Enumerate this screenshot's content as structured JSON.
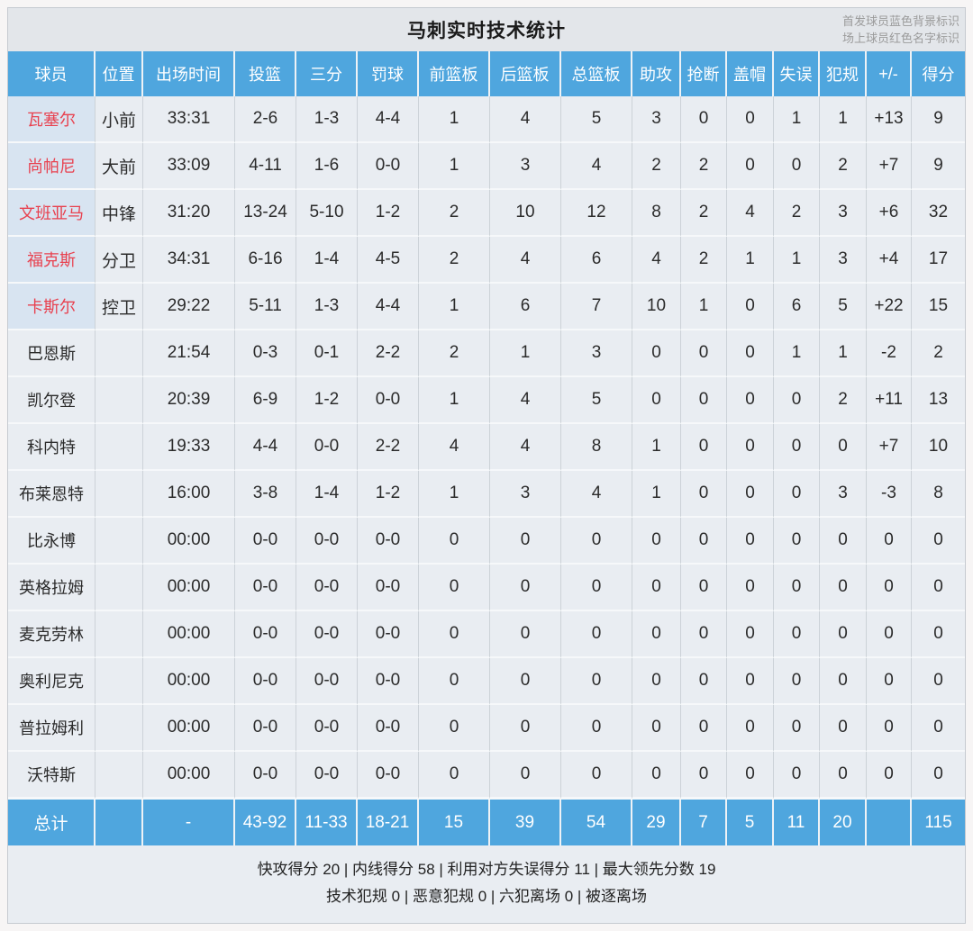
{
  "page": {
    "title": "马刺实时技术统计",
    "legend_line1": "首发球员蓝色背景标识",
    "legend_line2": "场上球员红色名字标识"
  },
  "colors": {
    "header_blue": "#4fa6de",
    "starter_bg": "#d8e4f1",
    "oncourt_red": "#e8414f"
  },
  "table": {
    "columns": [
      "球员",
      "位置",
      "出场时间",
      "投篮",
      "三分",
      "罚球",
      "前篮板",
      "后篮板",
      "总篮板",
      "助攻",
      "抢断",
      "盖帽",
      "失误",
      "犯规",
      "+/-",
      "得分"
    ],
    "rows": [
      {
        "name": "瓦塞尔",
        "starter": true,
        "oncourt": true,
        "pos": "小前",
        "time": "33:31",
        "fg": "2-6",
        "tp": "1-3",
        "ft": "4-4",
        "orb": "1",
        "drb": "4",
        "trb": "5",
        "ast": "3",
        "stl": "0",
        "blk": "0",
        "to": "1",
        "pf": "1",
        "pm": "+13",
        "pts": "9"
      },
      {
        "name": "尚帕尼",
        "starter": true,
        "oncourt": true,
        "pos": "大前",
        "time": "33:09",
        "fg": "4-11",
        "tp": "1-6",
        "ft": "0-0",
        "orb": "1",
        "drb": "3",
        "trb": "4",
        "ast": "2",
        "stl": "2",
        "blk": "0",
        "to": "0",
        "pf": "2",
        "pm": "+7",
        "pts": "9"
      },
      {
        "name": "文班亚马",
        "starter": true,
        "oncourt": true,
        "pos": "中锋",
        "time": "31:20",
        "fg": "13-24",
        "tp": "5-10",
        "ft": "1-2",
        "orb": "2",
        "drb": "10",
        "trb": "12",
        "ast": "8",
        "stl": "2",
        "blk": "4",
        "to": "2",
        "pf": "3",
        "pm": "+6",
        "pts": "32"
      },
      {
        "name": "福克斯",
        "starter": true,
        "oncourt": true,
        "pos": "分卫",
        "time": "34:31",
        "fg": "6-16",
        "tp": "1-4",
        "ft": "4-5",
        "orb": "2",
        "drb": "4",
        "trb": "6",
        "ast": "4",
        "stl": "2",
        "blk": "1",
        "to": "1",
        "pf": "3",
        "pm": "+4",
        "pts": "17"
      },
      {
        "name": "卡斯尔",
        "starter": true,
        "oncourt": true,
        "pos": "控卫",
        "time": "29:22",
        "fg": "5-11",
        "tp": "1-3",
        "ft": "4-4",
        "orb": "1",
        "drb": "6",
        "trb": "7",
        "ast": "10",
        "stl": "1",
        "blk": "0",
        "to": "6",
        "pf": "5",
        "pm": "+22",
        "pts": "15"
      },
      {
        "name": "巴恩斯",
        "starter": false,
        "oncourt": false,
        "pos": "",
        "time": "21:54",
        "fg": "0-3",
        "tp": "0-1",
        "ft": "2-2",
        "orb": "2",
        "drb": "1",
        "trb": "3",
        "ast": "0",
        "stl": "0",
        "blk": "0",
        "to": "1",
        "pf": "1",
        "pm": "-2",
        "pts": "2"
      },
      {
        "name": "凯尔登",
        "starter": false,
        "oncourt": false,
        "pos": "",
        "time": "20:39",
        "fg": "6-9",
        "tp": "1-2",
        "ft": "0-0",
        "orb": "1",
        "drb": "4",
        "trb": "5",
        "ast": "0",
        "stl": "0",
        "blk": "0",
        "to": "0",
        "pf": "2",
        "pm": "+11",
        "pts": "13"
      },
      {
        "name": "科内特",
        "starter": false,
        "oncourt": false,
        "pos": "",
        "time": "19:33",
        "fg": "4-4",
        "tp": "0-0",
        "ft": "2-2",
        "orb": "4",
        "drb": "4",
        "trb": "8",
        "ast": "1",
        "stl": "0",
        "blk": "0",
        "to": "0",
        "pf": "0",
        "pm": "+7",
        "pts": "10"
      },
      {
        "name": "布莱恩特",
        "starter": false,
        "oncourt": false,
        "pos": "",
        "time": "16:00",
        "fg": "3-8",
        "tp": "1-4",
        "ft": "1-2",
        "orb": "1",
        "drb": "3",
        "trb": "4",
        "ast": "1",
        "stl": "0",
        "blk": "0",
        "to": "0",
        "pf": "3",
        "pm": "-3",
        "pts": "8"
      },
      {
        "name": "比永博",
        "starter": false,
        "oncourt": false,
        "pos": "",
        "time": "00:00",
        "fg": "0-0",
        "tp": "0-0",
        "ft": "0-0",
        "orb": "0",
        "drb": "0",
        "trb": "0",
        "ast": "0",
        "stl": "0",
        "blk": "0",
        "to": "0",
        "pf": "0",
        "pm": "0",
        "pts": "0"
      },
      {
        "name": "英格拉姆",
        "starter": false,
        "oncourt": false,
        "pos": "",
        "time": "00:00",
        "fg": "0-0",
        "tp": "0-0",
        "ft": "0-0",
        "orb": "0",
        "drb": "0",
        "trb": "0",
        "ast": "0",
        "stl": "0",
        "blk": "0",
        "to": "0",
        "pf": "0",
        "pm": "0",
        "pts": "0"
      },
      {
        "name": "麦克劳林",
        "starter": false,
        "oncourt": false,
        "pos": "",
        "time": "00:00",
        "fg": "0-0",
        "tp": "0-0",
        "ft": "0-0",
        "orb": "0",
        "drb": "0",
        "trb": "0",
        "ast": "0",
        "stl": "0",
        "blk": "0",
        "to": "0",
        "pf": "0",
        "pm": "0",
        "pts": "0"
      },
      {
        "name": "奥利尼克",
        "starter": false,
        "oncourt": false,
        "pos": "",
        "time": "00:00",
        "fg": "0-0",
        "tp": "0-0",
        "ft": "0-0",
        "orb": "0",
        "drb": "0",
        "trb": "0",
        "ast": "0",
        "stl": "0",
        "blk": "0",
        "to": "0",
        "pf": "0",
        "pm": "0",
        "pts": "0"
      },
      {
        "name": "普拉姆利",
        "starter": false,
        "oncourt": false,
        "pos": "",
        "time": "00:00",
        "fg": "0-0",
        "tp": "0-0",
        "ft": "0-0",
        "orb": "0",
        "drb": "0",
        "trb": "0",
        "ast": "0",
        "stl": "0",
        "blk": "0",
        "to": "0",
        "pf": "0",
        "pm": "0",
        "pts": "0"
      },
      {
        "name": "沃特斯",
        "starter": false,
        "oncourt": false,
        "pos": "",
        "time": "00:00",
        "fg": "0-0",
        "tp": "0-0",
        "ft": "0-0",
        "orb": "0",
        "drb": "0",
        "trb": "0",
        "ast": "0",
        "stl": "0",
        "blk": "0",
        "to": "0",
        "pf": "0",
        "pm": "0",
        "pts": "0"
      }
    ],
    "total": {
      "name": "总计",
      "pos": "",
      "time": "-",
      "fg": "43-92",
      "tp": "11-33",
      "ft": "18-21",
      "orb": "15",
      "drb": "39",
      "trb": "54",
      "ast": "29",
      "stl": "7",
      "blk": "5",
      "to": "11",
      "pf": "20",
      "pm": "",
      "pts": "115"
    }
  },
  "footer": {
    "line1": "快攻得分 20 | 内线得分 58 | 利用对方失误得分 11 | 最大领先分数 19",
    "line2": "技术犯规 0 | 恶意犯规 0 | 六犯离场 0 | 被逐离场"
  }
}
